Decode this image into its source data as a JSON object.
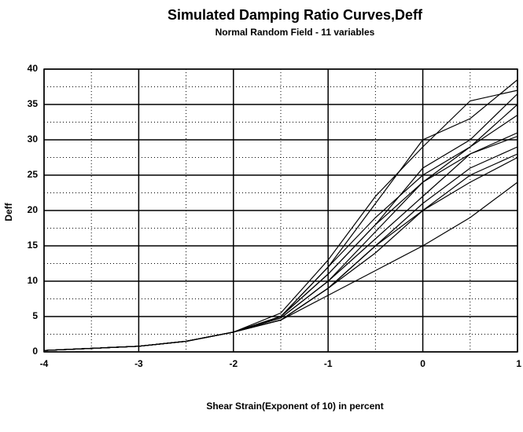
{
  "chart_data": {
    "type": "line",
    "title": "Simulated Damping Ratio Curves,Deff",
    "subtitle": "Normal Random Field - 11 variables",
    "xlabel": "Shear Strain(Exponent of 10) in percent",
    "ylabel": "Deff",
    "x": [
      -4,
      -3,
      -2.5,
      -2,
      -1.5,
      -1,
      -0.5,
      0,
      0.5,
      1
    ],
    "series": [
      {
        "color": "#000000",
        "values": [
          0.2,
          0.8,
          1.5,
          2.8,
          5,
          12,
          21,
          30,
          33,
          38.5
        ]
      },
      {
        "color": "#000000",
        "values": [
          0.2,
          0.8,
          1.5,
          2.8,
          5.5,
          13,
          22,
          29,
          35.5,
          37
        ]
      },
      {
        "color": "#000000",
        "values": [
          0.2,
          0.8,
          1.5,
          2.8,
          5,
          11,
          18,
          26,
          30,
          36.5
        ]
      },
      {
        "color": "#000000",
        "values": [
          0.2,
          0.8,
          1.5,
          2.8,
          5,
          12,
          19,
          25,
          29,
          35
        ]
      },
      {
        "color": "#000000",
        "values": [
          0.2,
          0.8,
          1.5,
          2.8,
          5,
          11,
          18,
          24,
          29,
          33.5
        ]
      },
      {
        "color": "#000000",
        "values": [
          0.2,
          0.8,
          1.5,
          2.8,
          4.8,
          10,
          17,
          24,
          28,
          31
        ]
      },
      {
        "color": "#000000",
        "values": [
          0.2,
          0.8,
          1.5,
          2.8,
          4.8,
          10,
          16,
          22,
          28,
          30.5
        ]
      },
      {
        "color": "#000000",
        "values": [
          0.2,
          0.8,
          1.5,
          2.8,
          4.5,
          9,
          15,
          21,
          26,
          29
        ]
      },
      {
        "color": "#000000",
        "values": [
          0.2,
          0.8,
          1.5,
          2.8,
          4.5,
          9,
          15,
          20,
          25,
          28
        ]
      },
      {
        "color": "#000000",
        "values": [
          0.2,
          0.8,
          1.5,
          2.8,
          4.5,
          9,
          14,
          20,
          24,
          27.5
        ]
      },
      {
        "color": "#000000",
        "values": [
          0.2,
          0.8,
          1.5,
          2.8,
          4.5,
          8,
          11.5,
          15,
          19,
          24
        ]
      }
    ],
    "xlim": [
      -4,
      1
    ],
    "xticks": [
      -4,
      -3,
      -2,
      -1,
      0,
      1
    ],
    "ylim": [
      0,
      40
    ],
    "yticks": [
      0,
      5,
      10,
      15,
      20,
      25,
      30,
      35,
      40
    ],
    "grid": true
  }
}
